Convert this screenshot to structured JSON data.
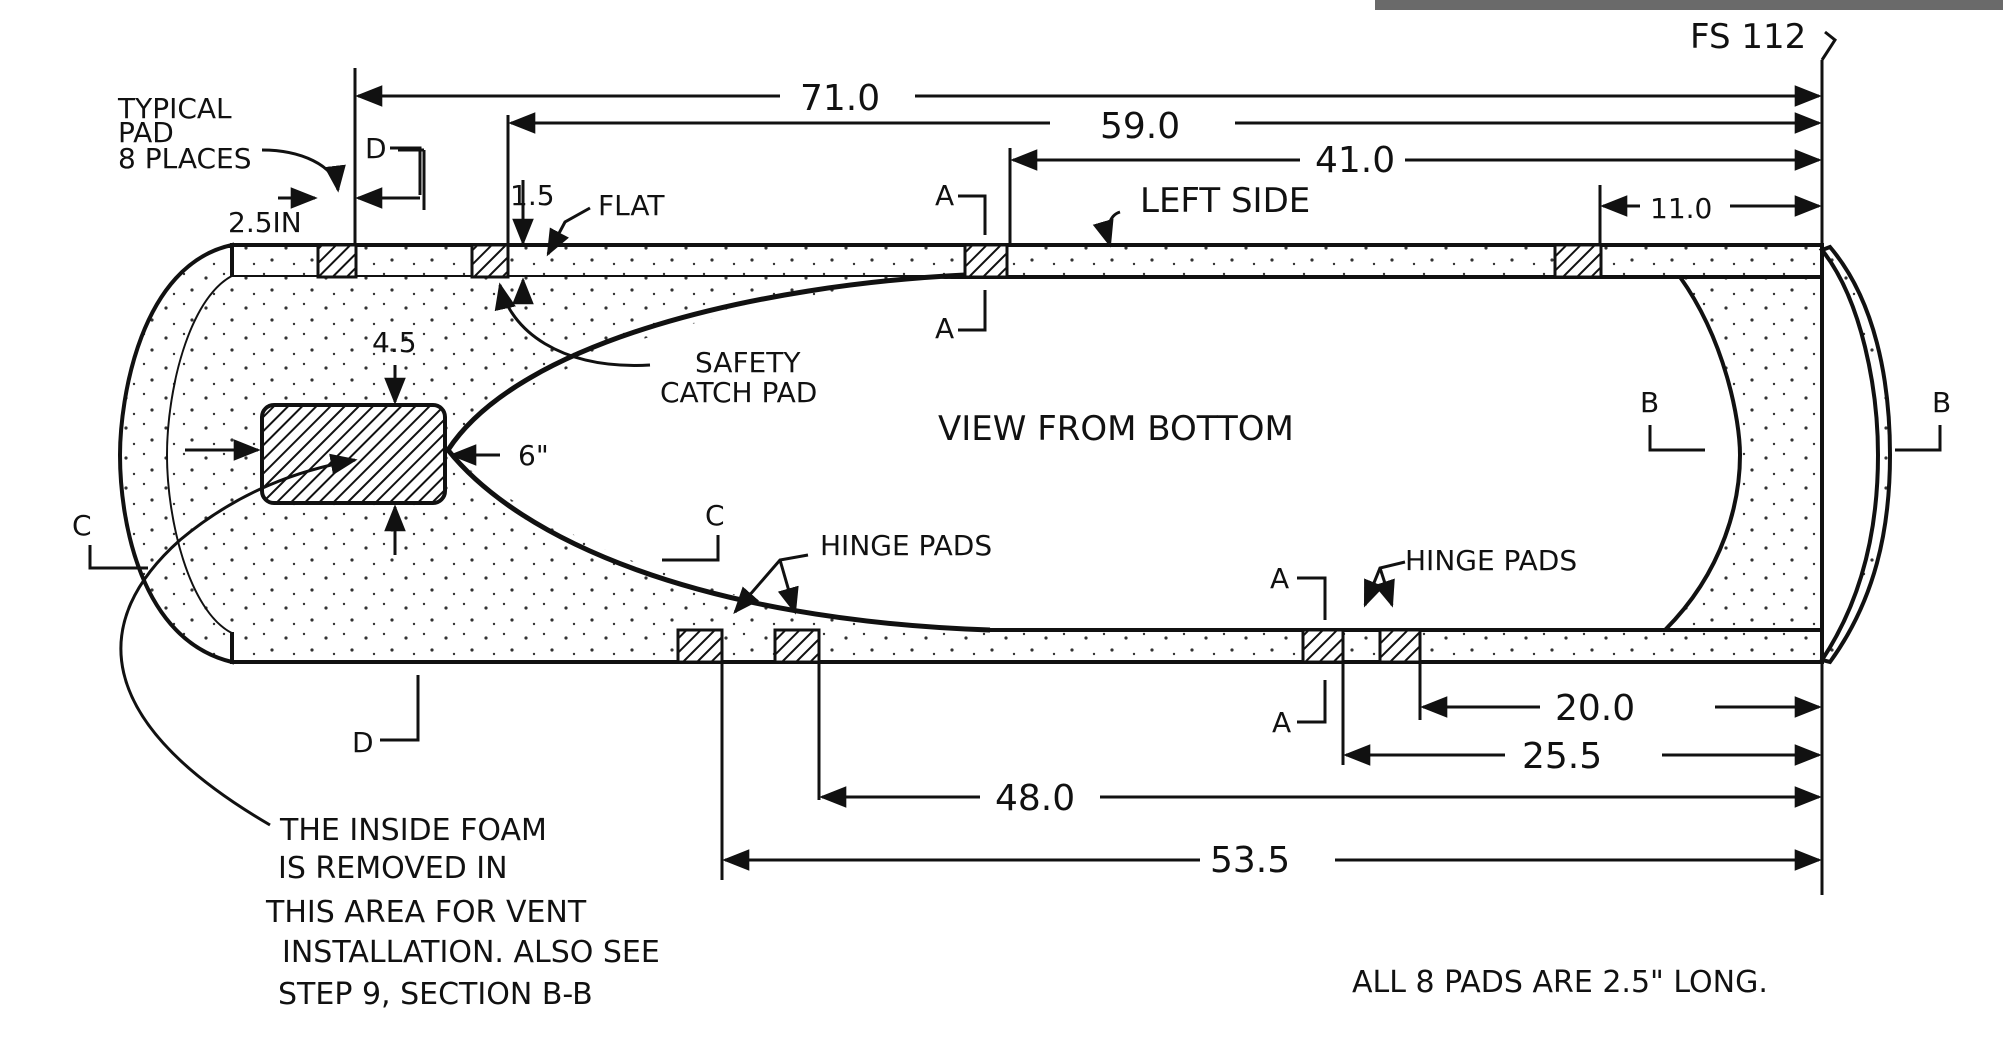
{
  "diagram": {
    "view_title": "VIEW FROM BOTTOM",
    "station_label": "FS 112",
    "side_label": "LEFT SIDE",
    "typical_pad_note": [
      "TYPICAL",
      "PAD",
      "8 PLACES"
    ],
    "flat_label": "FLAT",
    "safety_catch_label": [
      "SAFETY",
      "CATCH PAD"
    ],
    "hinge_pads_label_1": "HINGE PADS",
    "hinge_pads_label_2": "HINGE PADS",
    "vent_note": [
      "THE INSIDE FOAM",
      "IS REMOVED IN",
      "THIS AREA FOR VENT",
      "INSTALLATION. ALSO SEE",
      "STEP 9, SECTION B-B"
    ],
    "pad_length_note": "ALL 8 PADS ARE 2.5\" LONG.",
    "section_markers": {
      "a": "A",
      "b": "B",
      "c": "C",
      "d": "D"
    },
    "dimensions": {
      "d71": "71.0",
      "d59": "59.0",
      "d41": "41.0",
      "d11": "11.0",
      "d2_5": "2.5IN",
      "d1_5": "1.5",
      "d4_5": "4.5",
      "d6": "6\"",
      "d20": "20.0",
      "d25_5": "25.5",
      "d48": "48.0",
      "d53_5": "53.5"
    },
    "colors": {
      "ink": "#111111",
      "paper": "#ffffff"
    }
  }
}
